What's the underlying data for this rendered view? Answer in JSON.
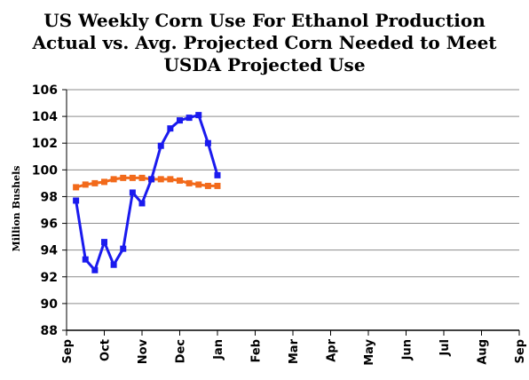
{
  "chart_data": {
    "type": "line",
    "title": [
      "US Weekly  Corn Use For Ethanol Production",
      "Actual vs. Avg. Projected Corn Needed to Meet",
      "USDA Projected Use"
    ],
    "ylabel": "Million Bushels",
    "xlabel": "",
    "ylim": [
      88,
      106
    ],
    "y_ticks": [
      88,
      90,
      92,
      94,
      96,
      98,
      100,
      102,
      104,
      106
    ],
    "x_ticks": [
      "Sep",
      "Oct",
      "Nov",
      "Dec",
      "Jan",
      "Feb",
      "Mar",
      "Apr",
      "May",
      "Jun",
      "Jul",
      "Aug",
      "Sep"
    ],
    "xlim": [
      0,
      12
    ],
    "grid": "horizontal",
    "legend": "none",
    "series": [
      {
        "color": "#1a1aee",
        "marker": "square",
        "x": [
          0.25,
          0.5,
          0.75,
          1.0,
          1.25,
          1.5,
          1.75,
          2.0,
          2.25,
          2.5,
          2.75,
          3.0,
          3.25,
          3.5,
          3.75,
          4.0
        ],
        "values": [
          97.7,
          93.3,
          92.5,
          94.6,
          92.9,
          94.1,
          98.3,
          97.5,
          99.3,
          101.8,
          103.1,
          103.7,
          103.9,
          104.1,
          102.0,
          99.6
        ]
      },
      {
        "color": "#f26a1b",
        "marker": "square",
        "x": [
          0.25,
          0.5,
          0.75,
          1.0,
          1.25,
          1.5,
          1.75,
          2.0,
          2.25,
          2.5,
          2.75,
          3.0,
          3.25,
          3.5,
          3.75,
          4.0
        ],
        "values": [
          98.7,
          98.9,
          99.0,
          99.1,
          99.3,
          99.4,
          99.4,
          99.4,
          99.3,
          99.3,
          99.3,
          99.2,
          99.0,
          98.9,
          98.8,
          98.8
        ]
      }
    ]
  }
}
